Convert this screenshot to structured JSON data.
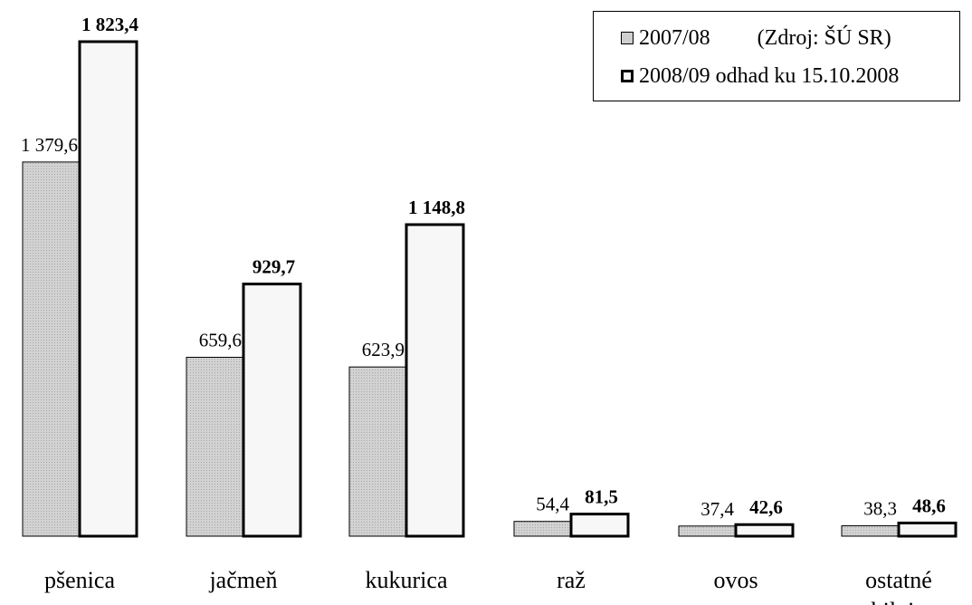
{
  "chart_data": {
    "type": "bar",
    "categories": [
      "pšenica",
      "jačmeň",
      "kukurica",
      "raž",
      "ovos",
      "ostatné obilniny"
    ],
    "series": [
      {
        "name": "2007/08",
        "values": [
          1379.6,
          659.6,
          623.9,
          54.4,
          37.4,
          38.3
        ],
        "labels": [
          "1 379,6",
          "659,6",
          "623,9",
          "54,4",
          "37,4",
          "38,3"
        ],
        "color": "#cfcfcf"
      },
      {
        "name": "2008/09 odhad ku 15.10.2008",
        "values": [
          1823.4,
          929.7,
          1148.8,
          81.5,
          42.6,
          48.6
        ],
        "labels": [
          "1 823,4",
          "929,7",
          "1 148,8",
          "81,5",
          "42,6",
          "48,6"
        ],
        "color": "#f7f7f7"
      }
    ],
    "source": "(Zdroj: ŠÚ SR)",
    "ylim": [
      0,
      1823.4
    ],
    "grid": false,
    "legend_position": "top-right"
  }
}
